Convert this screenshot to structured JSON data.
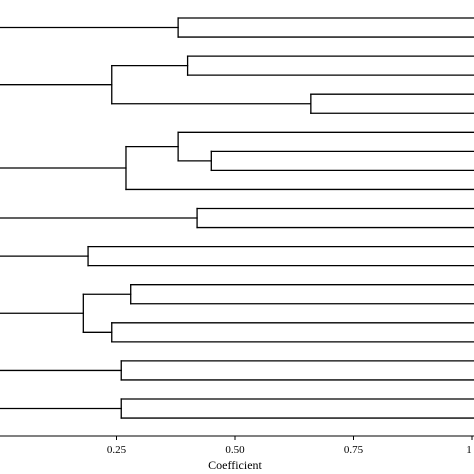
{
  "chart_data": {
    "type": "dendrogram",
    "orientation": "horizontal",
    "xlabel": "Coefficient",
    "xlim": [
      0.0,
      1.0
    ],
    "xticks": [
      0.25,
      0.5,
      0.75,
      1.0
    ],
    "tick_labels": [
      "0.25",
      "0.50",
      "0.75",
      "1"
    ],
    "leaves": [
      {
        "merge": 0.38,
        "children": [
          {
            "pos": 0
          },
          {
            "pos": 1
          }
        ]
      },
      {
        "merge": 0.24,
        "children": [
          {
            "merge": 0.4,
            "children": [
              {
                "pos": 2
              },
              {
                "pos": 3
              }
            ]
          },
          {
            "merge": 0.66,
            "children": [
              {
                "pos": 4
              },
              {
                "pos": 5
              }
            ]
          }
        ]
      },
      {
        "merge": 0.27,
        "children": [
          {
            "merge": 0.38,
            "children": [
              {
                "pos": 6
              },
              {
                "merge": 0.45,
                "children": [
                  {
                    "pos": 7
                  },
                  {
                    "pos": 8
                  }
                ]
              }
            ]
          },
          {
            "pos": 9
          }
        ]
      },
      {
        "merge": 0.42,
        "children": [
          {
            "pos": 10
          },
          {
            "pos": 11
          }
        ]
      },
      {
        "merge": 0.19,
        "children": [
          {
            "pos": 12
          },
          {
            "pos": 13
          }
        ]
      },
      {
        "merge": 0.18,
        "children": [
          {
            "merge": 0.28,
            "children": [
              {
                "pos": 14
              },
              {
                "pos": 15
              }
            ]
          },
          {
            "merge": 0.24,
            "children": [
              {
                "pos": 16
              },
              {
                "pos": 17
              }
            ]
          }
        ]
      },
      {
        "merge": 0.26,
        "children": [
          {
            "pos": 18
          },
          {
            "pos": 19
          }
        ]
      },
      {
        "merge": 0.26,
        "children": [
          {
            "pos": 20
          },
          {
            "pos": 21
          }
        ]
      }
    ],
    "grid": false,
    "colors": {
      "lines": "#000000",
      "background": "#ffffff"
    }
  }
}
